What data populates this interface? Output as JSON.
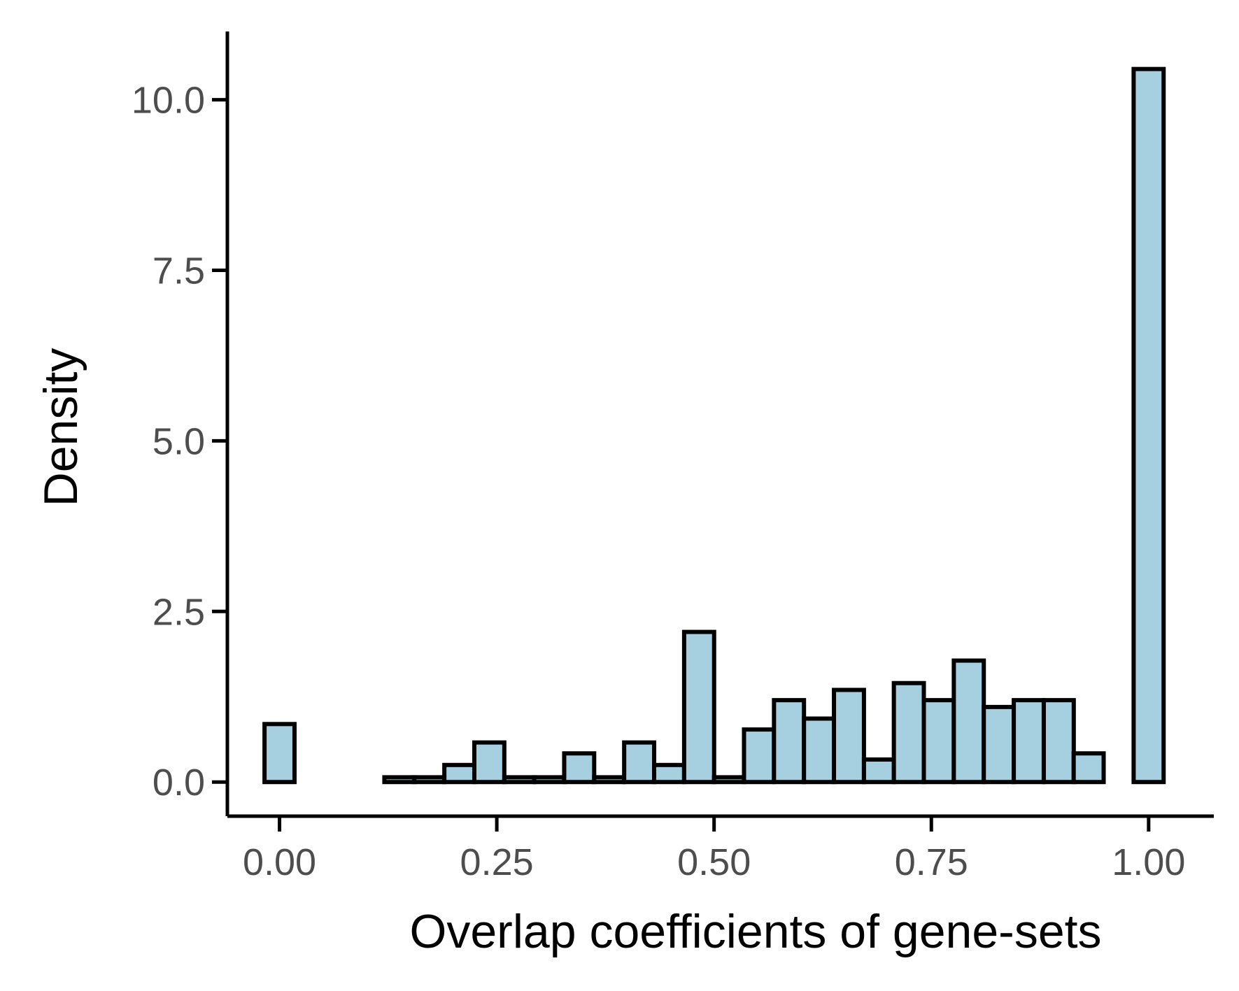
{
  "chart_data": {
    "type": "bar",
    "title": "",
    "xlabel": "Overlap coefficients of gene-sets",
    "ylabel": "Density",
    "xlim": [
      -0.06,
      1.075
    ],
    "ylim": [
      -0.5,
      11.0
    ],
    "grid": false,
    "bin_width": 0.0345,
    "x_ticks": [
      {
        "value": 0.0,
        "label": "0.00"
      },
      {
        "value": 0.25,
        "label": "0.25"
      },
      {
        "value": 0.5,
        "label": "0.50"
      },
      {
        "value": 0.75,
        "label": "0.75"
      },
      {
        "value": 1.0,
        "label": "1.00"
      }
    ],
    "y_ticks": [
      {
        "value": 0.0,
        "label": "0.0"
      },
      {
        "value": 2.5,
        "label": "2.5"
      },
      {
        "value": 5.0,
        "label": "5.0"
      },
      {
        "value": 7.5,
        "label": "7.5"
      },
      {
        "value": 10.0,
        "label": "10.0"
      }
    ],
    "x": [
      0.0,
      0.0345,
      0.069,
      0.1034,
      0.1379,
      0.1724,
      0.2069,
      0.2414,
      0.2759,
      0.3103,
      0.3448,
      0.3793,
      0.4138,
      0.4483,
      0.4828,
      0.5172,
      0.5517,
      0.5862,
      0.6207,
      0.6552,
      0.6897,
      0.7241,
      0.7586,
      0.7931,
      0.8276,
      0.8621,
      0.8966,
      0.931,
      0.9655,
      1.0
    ],
    "values": [
      0.85,
      0.0,
      0.0,
      0.0,
      0.07,
      0.07,
      0.25,
      0.58,
      0.07,
      0.07,
      0.42,
      0.07,
      0.58,
      0.25,
      2.2,
      0.07,
      0.77,
      1.2,
      0.93,
      1.35,
      0.33,
      1.45,
      1.2,
      1.78,
      1.1,
      1.2,
      1.2,
      0.42,
      0.0,
      10.45
    ],
    "colors": {
      "bar_fill": "#a6d0e0",
      "bar_stroke": "#000000",
      "axis": "#000000",
      "tick_label": "#4d4d4d",
      "title": "#000000"
    }
  }
}
